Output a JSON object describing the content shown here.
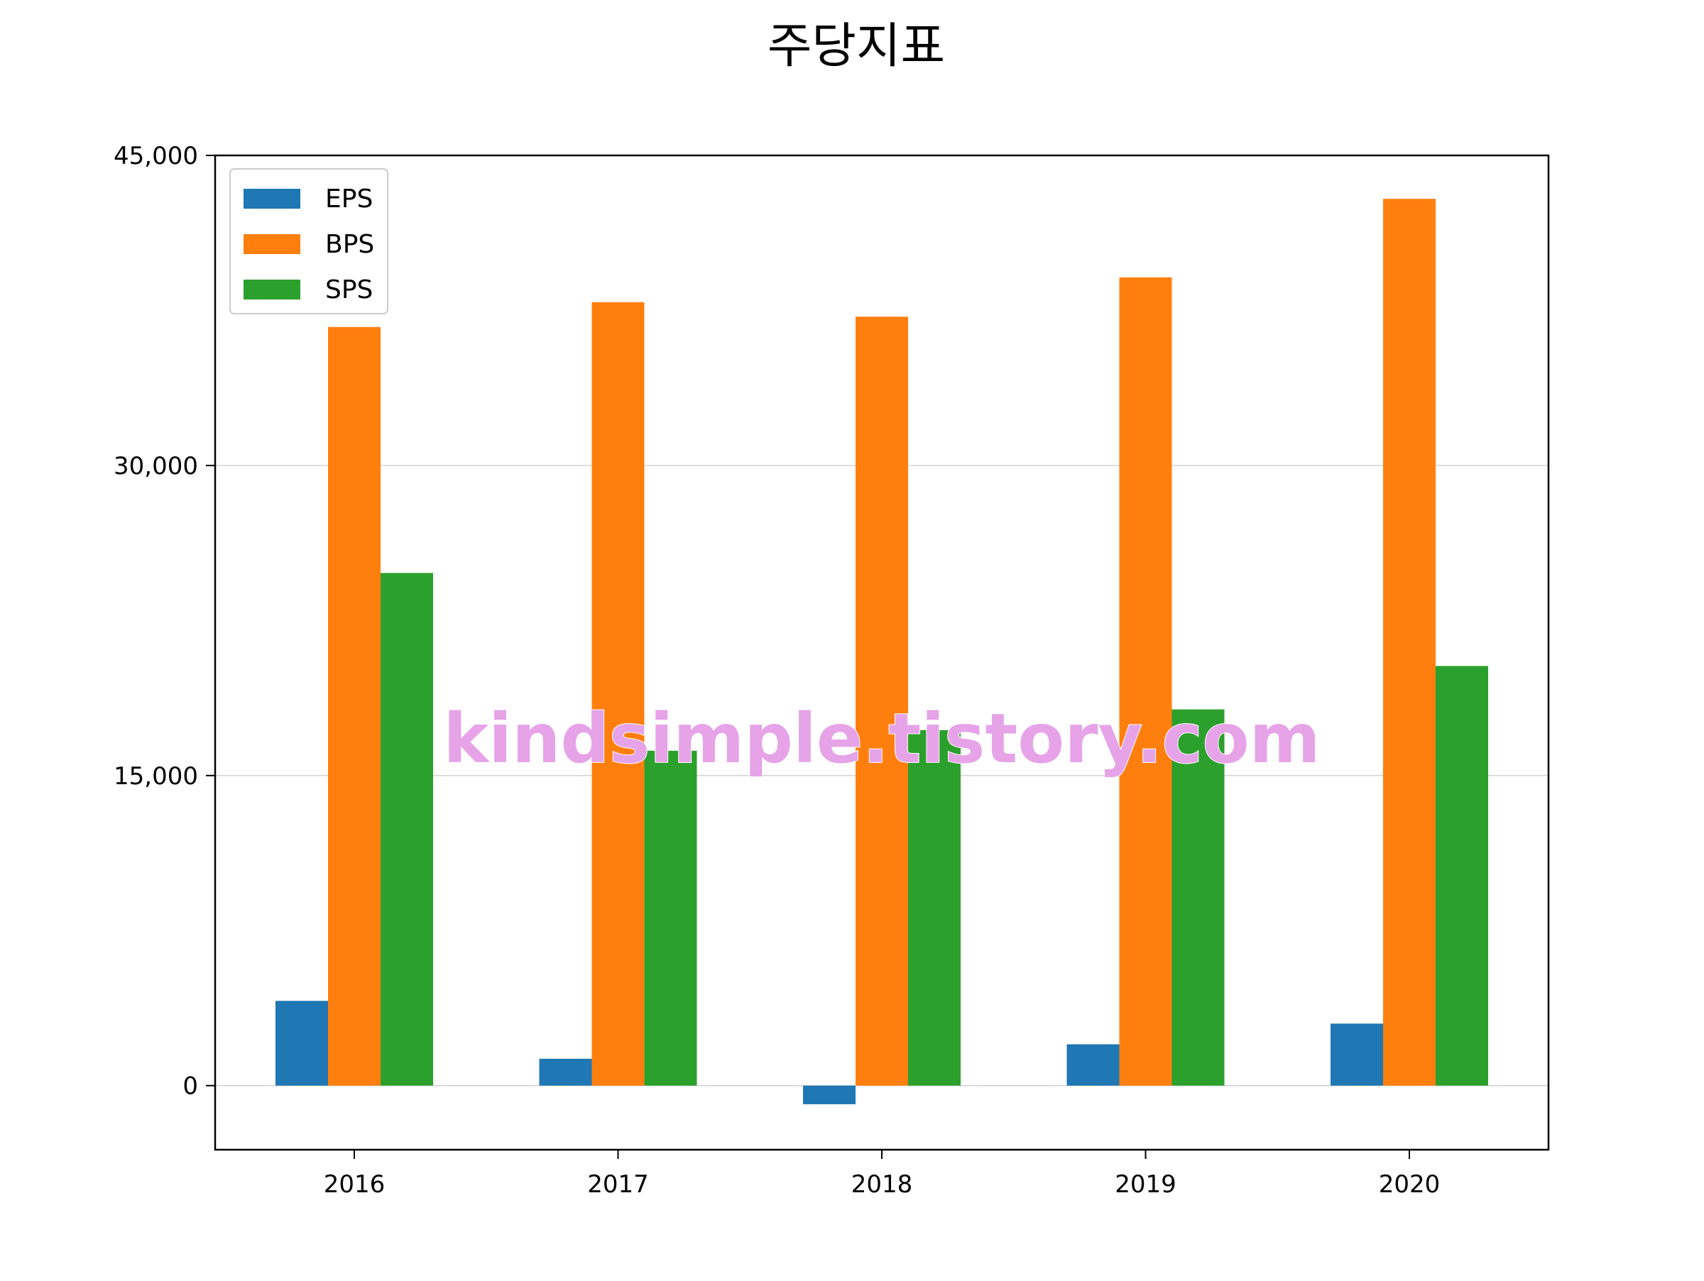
{
  "chart_data": {
    "type": "bar",
    "title": "주당지표",
    "categories": [
      "2016",
      "2017",
      "2018",
      "2019",
      "2020"
    ],
    "series": [
      {
        "name": "EPS",
        "color": "#1f77b4",
        "values": [
          4100,
          1300,
          -900,
          2000,
          3000
        ]
      },
      {
        "name": "BPS",
        "color": "#ff7f0e",
        "values": [
          36700,
          37900,
          37200,
          39100,
          42900
        ]
      },
      {
        "name": "SPS",
        "color": "#2ca02c",
        "values": [
          24800,
          16200,
          17200,
          18200,
          20300
        ]
      }
    ],
    "ylim": [
      -3100,
      45000
    ],
    "yticks": [
      0,
      15000,
      30000,
      45000
    ],
    "ytick_labels": [
      "0",
      "15,000",
      "30,000",
      "45,000"
    ],
    "grid": "horizontal",
    "legend_position": "top-left",
    "watermark": "kindsimple.tistory.com"
  }
}
